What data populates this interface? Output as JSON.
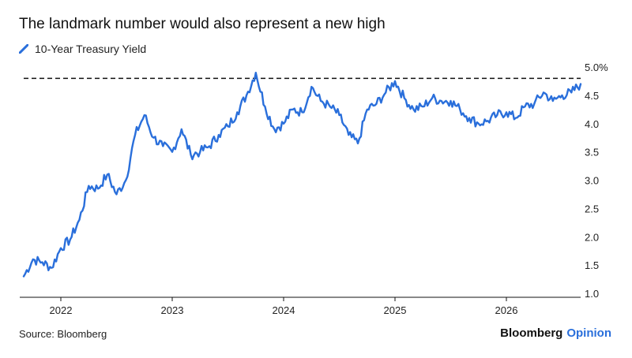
{
  "title": "The landmark number would also represent a new high",
  "source": "Source: Bloomberg",
  "brand": {
    "name": "Bloomberg",
    "section": "Opinion"
  },
  "colors": {
    "series": "#2a6fdb",
    "reference": "#111111",
    "axis": "#111111"
  },
  "chart_data": {
    "type": "line",
    "title": "The landmark number would also represent a new high",
    "xlabel": "",
    "ylabel": "",
    "x_ticks": [
      "2022",
      "2023",
      "2024",
      "2025",
      "2026"
    ],
    "y_ticks": [
      "1.0",
      "1.5",
      "2.0",
      "2.5",
      "3.0",
      "3.5",
      "4.0",
      "4.5",
      "5.0%"
    ],
    "ylim": [
      1.0,
      5.0
    ],
    "xlim": [
      "2021-09",
      "2026-09"
    ],
    "y_axis_position": "right",
    "grid": false,
    "legend": "top-left",
    "reference_line": {
      "value": 4.8,
      "style": "dashed"
    },
    "series": [
      {
        "name": "10-Year Treasury Yield",
        "x": [
          "2021-09",
          "2021-10",
          "2021-11",
          "2021-12",
          "2022-01",
          "2022-02",
          "2022-03",
          "2022-04",
          "2022-05",
          "2022-06",
          "2022-07",
          "2022-08",
          "2022-09",
          "2022-10",
          "2022-11",
          "2022-12",
          "2023-01",
          "2023-02",
          "2023-03",
          "2023-04",
          "2023-05",
          "2023-06",
          "2023-07",
          "2023-08",
          "2023-09",
          "2023-10",
          "2023-11",
          "2023-12",
          "2024-01",
          "2024-02",
          "2024-03",
          "2024-04",
          "2024-05",
          "2024-06",
          "2024-07",
          "2024-08",
          "2024-09",
          "2024-10",
          "2024-11",
          "2024-12",
          "2025-01",
          "2025-02",
          "2025-03",
          "2025-04",
          "2025-05",
          "2025-06",
          "2025-07",
          "2025-08",
          "2025-09",
          "2025-10",
          "2025-11",
          "2025-12",
          "2026-01",
          "2026-02",
          "2026-03",
          "2026-04",
          "2026-05",
          "2026-06",
          "2026-07",
          "2026-08",
          "2026-09"
        ],
        "values": [
          1.3,
          1.6,
          1.55,
          1.45,
          1.8,
          1.95,
          2.3,
          2.9,
          2.85,
          3.1,
          2.75,
          3.0,
          3.8,
          4.15,
          3.75,
          3.6,
          3.5,
          3.9,
          3.45,
          3.5,
          3.6,
          3.8,
          3.95,
          4.2,
          4.5,
          4.9,
          4.3,
          3.9,
          4.0,
          4.25,
          4.2,
          4.65,
          4.4,
          4.3,
          4.15,
          3.8,
          3.65,
          4.25,
          4.35,
          4.55,
          4.75,
          4.45,
          4.25,
          4.3,
          4.45,
          4.4,
          4.4,
          4.25,
          4.1,
          4.0,
          4.05,
          4.15,
          4.2,
          4.1,
          4.3,
          4.35,
          4.55,
          4.4,
          4.5,
          4.55,
          4.7
        ]
      }
    ]
  }
}
